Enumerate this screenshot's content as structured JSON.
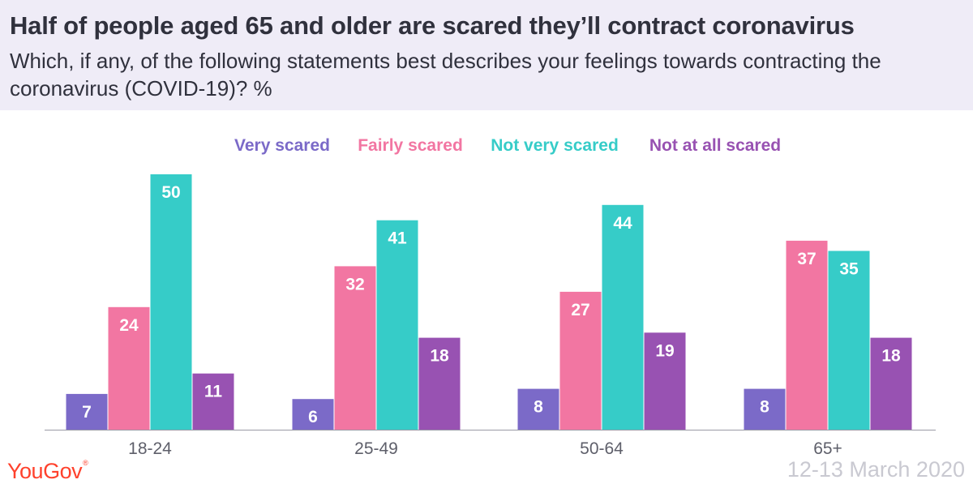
{
  "title": "Half of people aged 65 and older are scared they’ll contract coronavirus",
  "subtitle": "Which, if any, of the following statements best describes your feelings towards contracting the coronavirus (COVID-19)? %",
  "brand": "YouGov",
  "brand_mark": "®",
  "date": "12-13 March 2020",
  "chart_data": {
    "type": "bar",
    "categories": [
      "18-24",
      "25-49",
      "50-64",
      "65+"
    ],
    "series": [
      {
        "name": "Very scared",
        "color": "#7b6ac8",
        "values": [
          7,
          6,
          8,
          8
        ]
      },
      {
        "name": "Fairly scared",
        "color": "#f276a2",
        "values": [
          24,
          32,
          27,
          37
        ]
      },
      {
        "name": "Not very scared",
        "color": "#36ccc8",
        "values": [
          50,
          41,
          44,
          35
        ]
      },
      {
        "name": "Not at all scared",
        "color": "#9852b2",
        "values": [
          11,
          18,
          19,
          18
        ]
      }
    ],
    "legend_position": "top",
    "grid": false,
    "data_labels": true,
    "ylim": [
      0,
      50
    ]
  }
}
